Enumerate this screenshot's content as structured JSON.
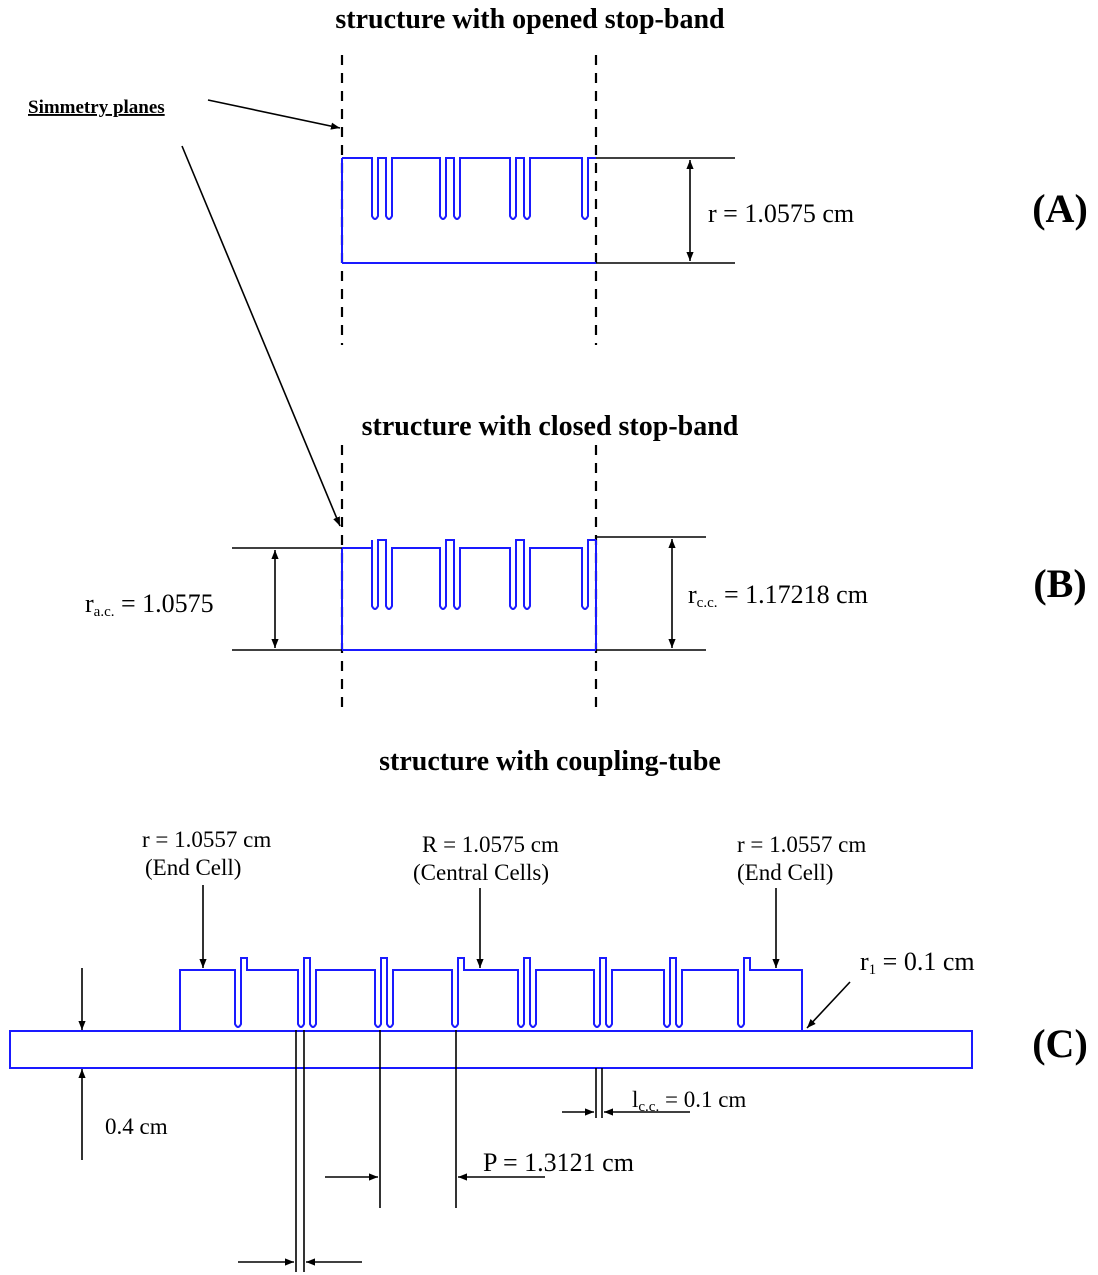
{
  "titles": {
    "a": "structure with opened stop-band",
    "b": "structure with closed stop-band",
    "c": "structure with coupling-tube"
  },
  "symmetry_label": "Simmetry planes",
  "panel_labels": {
    "a": "(A)",
    "b": "(B)",
    "c": "(C)"
  },
  "panel_a": {
    "radius": "r = 1.0575 cm"
  },
  "panel_b": {
    "rac_main": "r",
    "rac_sub": "a.c.",
    "rac_value": " = 1.0575",
    "rcc_main": "r",
    "rcc_sub": "c.c.",
    "rcc_value": " = 1.17218 cm"
  },
  "panel_c": {
    "end_cell_left_r": "r = 1.0557 cm",
    "end_cell_left_label": "(End Cell)",
    "central_R": "R = 1.0575 cm",
    "central_label": "(Central Cells)",
    "end_cell_right_r": "r = 1.0557 cm",
    "end_cell_right_label": "(End Cell)",
    "r1_main": "r",
    "r1_sub": "1",
    "r1_value": " = 0.1 cm",
    "tube_radius": "0.4 cm",
    "lcc_main": "l",
    "lcc_sub": "c.c.",
    "lcc_value": " = 0.1 cm",
    "period": "P = 1.3121 cm"
  },
  "colors": {
    "structure": "#1a1aff",
    "annotation": "#000000"
  }
}
